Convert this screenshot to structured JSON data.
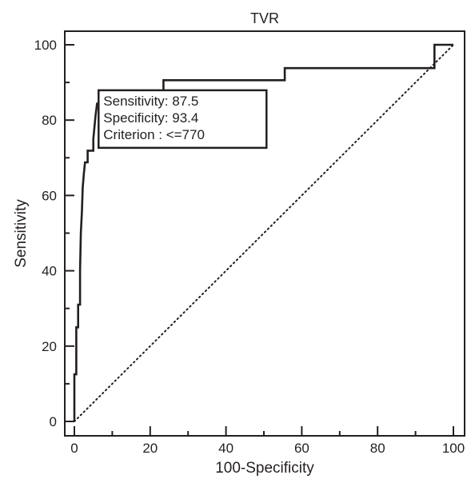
{
  "chart_data": {
    "type": "line",
    "title": "TVR",
    "xlabel": "100-Specificity",
    "ylabel": "Sensitivity",
    "xlim": [
      0,
      100
    ],
    "ylim": [
      0,
      100
    ],
    "x_ticks": [
      "0",
      "20",
      "40",
      "60",
      "80",
      "100"
    ],
    "y_ticks": [
      "0",
      "20",
      "40",
      "60",
      "80",
      "100"
    ],
    "grid": false,
    "legend": "none",
    "series": [
      {
        "kind": "roc-curve",
        "line_style": "solid",
        "points": [
          [
            0,
            0
          ],
          [
            0,
            12.5
          ],
          [
            0.5,
            12.5
          ],
          [
            0.5,
            25
          ],
          [
            1,
            25
          ],
          [
            1,
            31
          ],
          [
            1.5,
            31
          ],
          [
            1.5,
            40
          ],
          [
            1.7,
            50
          ],
          [
            2,
            56
          ],
          [
            2.2,
            62
          ],
          [
            2.5,
            65.6
          ],
          [
            2.8,
            68.8
          ],
          [
            3.5,
            68.8
          ],
          [
            3.5,
            71.9
          ],
          [
            5,
            71.9
          ],
          [
            5,
            75
          ],
          [
            5.3,
            78.1
          ],
          [
            5.6,
            81.2
          ],
          [
            6,
            84.4
          ],
          [
            6.6,
            84.4
          ],
          [
            6.6,
            87.5
          ],
          [
            23.5,
            87.5
          ],
          [
            23.5,
            90.6
          ],
          [
            55.5,
            90.6
          ],
          [
            55.5,
            93.8
          ],
          [
            95,
            93.8
          ],
          [
            95,
            100
          ],
          [
            100,
            100
          ]
        ]
      },
      {
        "kind": "reference-diagonal",
        "line_style": "dotted",
        "points": [
          [
            0,
            0
          ],
          [
            100,
            100
          ]
        ]
      }
    ],
    "annotation": {
      "at": [
        6.6,
        87.5
      ],
      "lines": [
        "Sensitivity: 87.5",
        "Specificity: 93.4",
        "Criterion : <=770"
      ]
    },
    "colors": {
      "line": "#231f20",
      "background": "#ffffff"
    }
  }
}
